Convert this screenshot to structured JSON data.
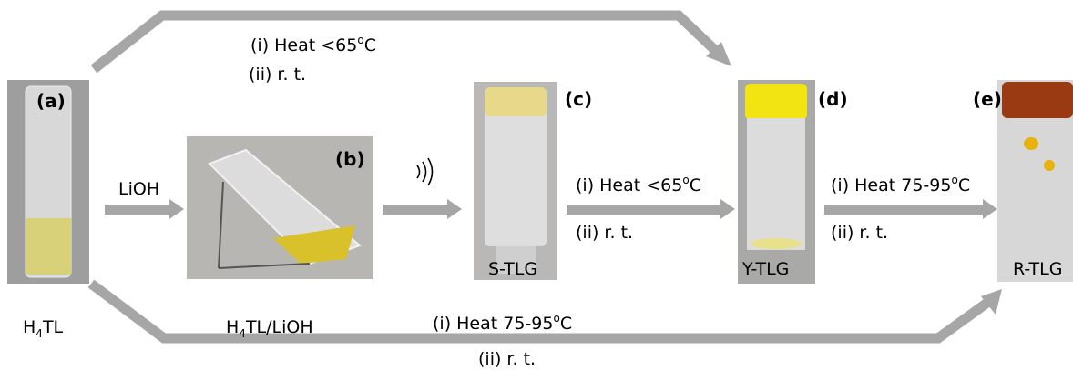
{
  "panels": [
    {
      "tag": "(a)",
      "label": [
        "H",
        "4",
        "TL"
      ]
    },
    {
      "tag": "(b)",
      "label": [
        "H",
        "4",
        "TL/LiOH"
      ]
    },
    {
      "tag": "(c)",
      "label": "S-TLG"
    },
    {
      "tag": "(d)",
      "label": "Y-TLG"
    },
    {
      "tag": "(e)",
      "label": "R-TLG"
    }
  ],
  "steps": {
    "top": {
      "i": [
        "(i) Heat <65",
        "o",
        "C"
      ],
      "ii": "(ii) r. t."
    },
    "a_to_b": "LiOH",
    "c_to_d": {
      "i": [
        "(i) Heat <65",
        "o",
        "C"
      ],
      "ii": "(ii) r. t."
    },
    "d_to_e": {
      "i": [
        "(i) Heat 75-95",
        "o",
        "C"
      ],
      "ii": "(ii) r. t."
    },
    "bottom": {
      "i": [
        "(i) Heat 75-95",
        "o",
        "C"
      ],
      "ii": "(ii) r. t."
    }
  }
}
